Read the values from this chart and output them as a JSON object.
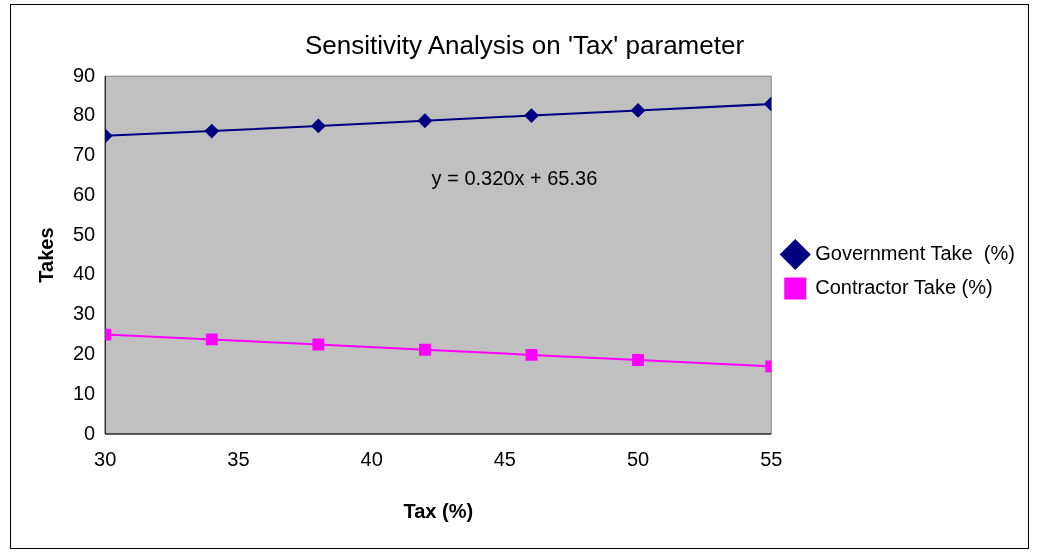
{
  "chart_data": {
    "type": "line",
    "title": "Sensitivity Analysis on 'Tax' parameter",
    "xlabel": "Tax (%)",
    "ylabel": "Takes",
    "x": [
      30,
      34,
      38,
      42,
      46,
      50,
      55
    ],
    "series": [
      {
        "name": "Government Take  (%)",
        "color": "#000080",
        "marker": "diamond",
        "values": [
          75,
          76.2,
          77.5,
          78.8,
          80.1,
          81.4,
          83
        ]
      },
      {
        "name": "Contractor Take (%)",
        "color": "#ff00ff",
        "marker": "square",
        "values": [
          25,
          23.8,
          22.5,
          21.2,
          19.9,
          18.6,
          17
        ]
      }
    ],
    "xlim": [
      30,
      55
    ],
    "xticks": [
      30,
      35,
      40,
      45,
      50,
      55
    ],
    "ylim": [
      0,
      90
    ],
    "yticks": [
      0,
      10,
      20,
      30,
      40,
      50,
      60,
      70,
      80,
      90
    ],
    "grid": false,
    "legend": "right",
    "line_style": "solid",
    "annotations": [
      "y = 0.320x + 65.36"
    ]
  }
}
